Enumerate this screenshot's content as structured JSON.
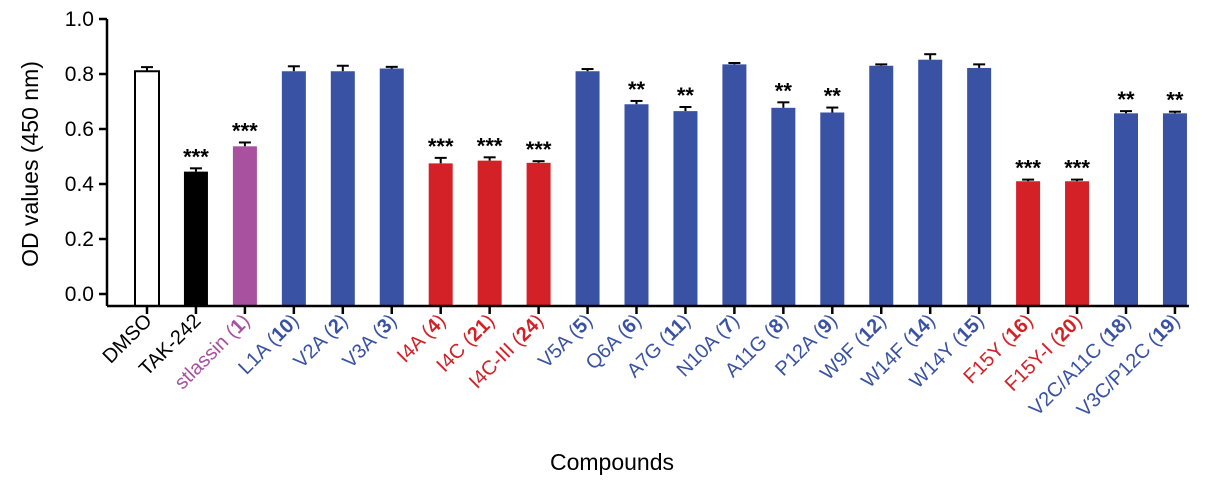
{
  "chart_data": {
    "type": "bar",
    "ylabel": "OD values (450 nm)",
    "xlabel": "Compounds",
    "ylim": [
      0,
      1.0
    ],
    "yticks": [
      "0.0",
      "0.2",
      "0.4",
      "0.6",
      "0.8",
      "1.0"
    ],
    "grid": false,
    "legend": "none",
    "colors": {
      "control": "#ffffff",
      "reference": "#000000",
      "parent": "#a8529f",
      "blue": "#3a52a3",
      "red": "#d42027"
    },
    "categories": [
      {
        "name": "DMSO",
        "num": "",
        "value": 0.81,
        "error": 0.015,
        "sig": "",
        "color": "control",
        "label_color": "#000000"
      },
      {
        "name": "TAK-242",
        "num": "",
        "value": 0.445,
        "error": 0.012,
        "sig": "***",
        "color": "reference",
        "label_color": "#000000"
      },
      {
        "name": "stlassin",
        "num": "1",
        "value": 0.537,
        "error": 0.014,
        "sig": "***",
        "color": "parent",
        "label_color": "#a8529f"
      },
      {
        "name": "L1A",
        "num": "10",
        "value": 0.81,
        "error": 0.018,
        "sig": "",
        "color": "blue",
        "label_color": "#3a52a3"
      },
      {
        "name": "V2A",
        "num": "2",
        "value": 0.81,
        "error": 0.02,
        "sig": "",
        "color": "blue",
        "label_color": "#3a52a3"
      },
      {
        "name": "V3A",
        "num": "3",
        "value": 0.82,
        "error": 0.006,
        "sig": "",
        "color": "blue",
        "label_color": "#3a52a3"
      },
      {
        "name": "I4A",
        "num": "4",
        "value": 0.475,
        "error": 0.02,
        "sig": "***",
        "color": "red",
        "label_color": "#d42027"
      },
      {
        "name": "I4C",
        "num": "21",
        "value": 0.485,
        "error": 0.012,
        "sig": "***",
        "color": "red",
        "label_color": "#d42027"
      },
      {
        "name": "I4C-III",
        "num": "24",
        "value": 0.477,
        "error": 0.006,
        "sig": "***",
        "color": "red",
        "label_color": "#d42027"
      },
      {
        "name": "V5A",
        "num": "5",
        "value": 0.81,
        "error": 0.008,
        "sig": "",
        "color": "blue",
        "label_color": "#3a52a3"
      },
      {
        "name": "Q6A",
        "num": "6",
        "value": 0.69,
        "error": 0.012,
        "sig": "**",
        "color": "blue",
        "label_color": "#3a52a3"
      },
      {
        "name": "A7G",
        "num": "11",
        "value": 0.665,
        "error": 0.015,
        "sig": "**",
        "color": "blue",
        "label_color": "#3a52a3"
      },
      {
        "name": "N10A",
        "num": "7",
        "value": 0.835,
        "error": 0.005,
        "sig": "",
        "color": "blue",
        "label_color": "#3a52a3"
      },
      {
        "name": "A11G",
        "num": "8",
        "value": 0.677,
        "error": 0.02,
        "sig": "**",
        "color": "blue",
        "label_color": "#3a52a3"
      },
      {
        "name": "P12A",
        "num": "9",
        "value": 0.66,
        "error": 0.018,
        "sig": "**",
        "color": "blue",
        "label_color": "#3a52a3"
      },
      {
        "name": "W9F",
        "num": "12",
        "value": 0.83,
        "error": 0.005,
        "sig": "",
        "color": "blue",
        "label_color": "#3a52a3"
      },
      {
        "name": "W14F",
        "num": "14",
        "value": 0.852,
        "error": 0.02,
        "sig": "",
        "color": "blue",
        "label_color": "#3a52a3"
      },
      {
        "name": "W14Y",
        "num": "15",
        "value": 0.822,
        "error": 0.013,
        "sig": "",
        "color": "blue",
        "label_color": "#3a52a3"
      },
      {
        "name": "F15Y",
        "num": "16",
        "value": 0.41,
        "error": 0.006,
        "sig": "***",
        "color": "red",
        "label_color": "#d42027"
      },
      {
        "name": "F15Y-I",
        "num": "20",
        "value": 0.41,
        "error": 0.006,
        "sig": "***",
        "color": "red",
        "label_color": "#d42027"
      },
      {
        "name": "V2C/A11C",
        "num": "18",
        "value": 0.657,
        "error": 0.008,
        "sig": "**",
        "color": "blue",
        "label_color": "#3a52a3"
      },
      {
        "name": "V3C/P12C",
        "num": "19",
        "value": 0.657,
        "error": 0.006,
        "sig": "**",
        "color": "blue",
        "label_color": "#3a52a3"
      }
    ]
  }
}
